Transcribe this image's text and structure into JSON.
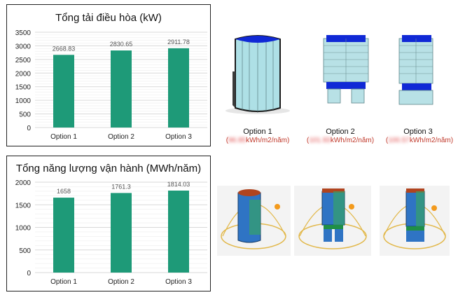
{
  "colors": {
    "bar": "#1e9a78",
    "grid": "#d9d9d9",
    "label": "#555555",
    "energy_text": "#c0392b"
  },
  "chart_data": [
    {
      "type": "bar",
      "title": "Tổng tải điều hòa (kW)",
      "categories": [
        "Option 1",
        "Option 2",
        "Option 3"
      ],
      "values": [
        2668.83,
        2830.65,
        2911.78
      ],
      "value_labels": [
        "2668.83",
        "2830.65",
        "2911.78"
      ],
      "ylim": [
        0,
        3500
      ],
      "yticks": [
        "0",
        "500",
        "1000",
        "1500",
        "2000",
        "2500",
        "3000",
        "3500"
      ],
      "grid": true
    },
    {
      "type": "bar",
      "title": "Tổng năng lượng vận hành (MWh/năm)",
      "categories": [
        "Option 1",
        "Option 2",
        "Option 3"
      ],
      "values": [
        1658,
        1761.3,
        1814.03
      ],
      "value_labels": [
        "1658",
        "1761.3",
        "1814.03"
      ],
      "ylim": [
        0,
        2000
      ],
      "yticks": [
        "0",
        "500",
        "1000",
        "1500",
        "2000"
      ],
      "grid": true
    }
  ],
  "options": [
    {
      "label": "Option 1",
      "value": "96.95",
      "unit": "kWh/m2/năm"
    },
    {
      "label": "Option 2",
      "value": "101.93",
      "unit": "kWh/m2/năm"
    },
    {
      "label": "Option 3",
      "value": "100.57",
      "unit": "kWh/m2/năm"
    }
  ]
}
